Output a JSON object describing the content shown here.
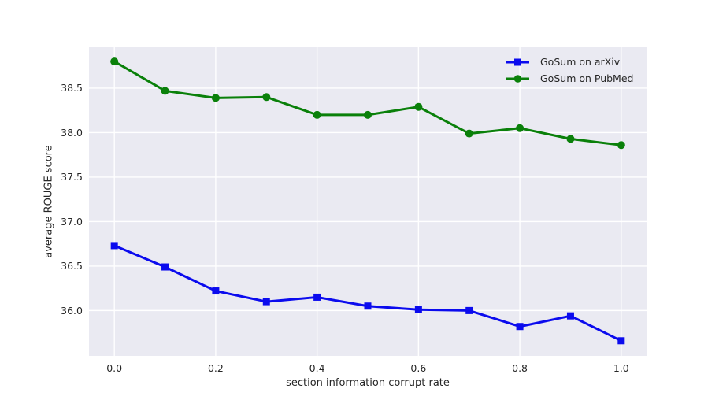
{
  "chart_data": {
    "type": "line",
    "title": "",
    "xlabel": "section information corrupt rate",
    "ylabel": "average ROUGE score",
    "x": [
      0.0,
      0.1,
      0.2,
      0.3,
      0.4,
      0.5,
      0.6,
      0.7,
      0.8,
      0.9,
      1.0
    ],
    "series": [
      {
        "name": "GoSum on arXiv",
        "color": "#0b0bee",
        "marker": "square",
        "values": [
          36.73,
          36.49,
          36.22,
          36.1,
          36.15,
          36.05,
          36.01,
          36.0,
          35.82,
          35.94,
          35.66
        ]
      },
      {
        "name": "GoSum on PubMed",
        "color": "#0a800a",
        "marker": "circle",
        "values": [
          38.8,
          38.47,
          38.39,
          38.4,
          38.2,
          38.2,
          38.29,
          37.99,
          38.05,
          37.93,
          37.86
        ]
      }
    ],
    "xlim": [
      -0.05,
      1.05
    ],
    "ylim": [
      35.49,
      38.96
    ],
    "x_ticks": [
      0.0,
      0.2,
      0.4,
      0.6,
      0.8,
      1.0
    ],
    "x_tick_labels": [
      "0.0",
      "0.2",
      "0.4",
      "0.6",
      "0.8",
      "1.0"
    ],
    "y_ticks": [
      36.0,
      36.5,
      37.0,
      37.5,
      38.0,
      38.5
    ],
    "y_tick_labels": [
      "36.0",
      "36.5",
      "37.0",
      "37.5",
      "38.0",
      "38.5"
    ],
    "grid": true,
    "legend_position": "upper right",
    "colors": {
      "plot_background": "#eaeaf2",
      "grid_line": "#ffffff",
      "text": "#262626",
      "figure_background": "#ffffff"
    }
  }
}
